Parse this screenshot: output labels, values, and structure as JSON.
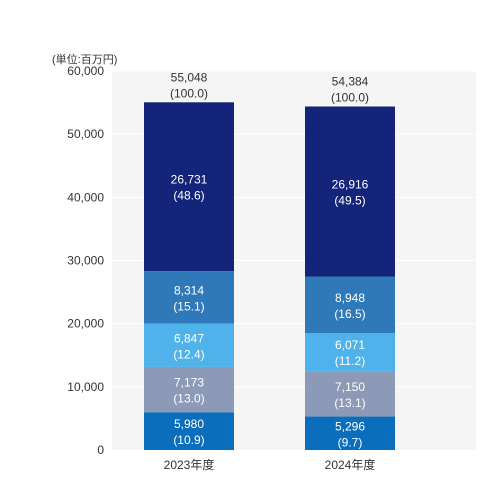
{
  "chart_data": {
    "type": "bar",
    "stacked": true,
    "unit_label": "(単位:百万円)",
    "title": "",
    "xlabel": "",
    "ylabel": "",
    "ylim": [
      0,
      60000
    ],
    "yticks": [
      "0",
      "10,000",
      "20,000",
      "30,000",
      "40,000",
      "50,000",
      "60,000"
    ],
    "ytick_values": [
      0,
      10000,
      20000,
      30000,
      40000,
      50000,
      60000
    ],
    "grid": true,
    "legend": "none",
    "categories": [
      "2023年度",
      "2024年度"
    ],
    "series": [
      {
        "color": "#0a6ebd",
        "values": [
          5980,
          5296
        ],
        "value_labels": [
          "5,980",
          "5,296"
        ],
        "pct_labels": [
          "(10.9)",
          "(9.7)"
        ]
      },
      {
        "color": "#8c9ab8",
        "values": [
          7173,
          7150
        ],
        "value_labels": [
          "7,173",
          "7,150"
        ],
        "pct_labels": [
          "(13.0)",
          "(13.1)"
        ]
      },
      {
        "color": "#4fb2ea",
        "values": [
          6847,
          6071
        ],
        "value_labels": [
          "6,847",
          "6,071"
        ],
        "pct_labels": [
          "(12.4)",
          "(11.2)"
        ]
      },
      {
        "color": "#2f79b9",
        "values": [
          8314,
          8948
        ],
        "value_labels": [
          "8,314",
          "8,948"
        ],
        "pct_labels": [
          "(15.1)",
          "(16.5)"
        ]
      },
      {
        "color": "#13247a",
        "values": [
          26731,
          26916
        ],
        "value_labels": [
          "26,731",
          "26,916"
        ],
        "pct_labels": [
          "(48.6)",
          "(49.5)"
        ]
      }
    ],
    "totals": [
      55048,
      54384
    ],
    "total_labels": [
      "55,048",
      "54,384"
    ],
    "total_pct_labels": [
      "(100.0)",
      "(100.0)"
    ]
  },
  "colors": {
    "plot_background": "#f5f5f5",
    "gridline": "#ffffff",
    "axis_text": "#333333"
  }
}
